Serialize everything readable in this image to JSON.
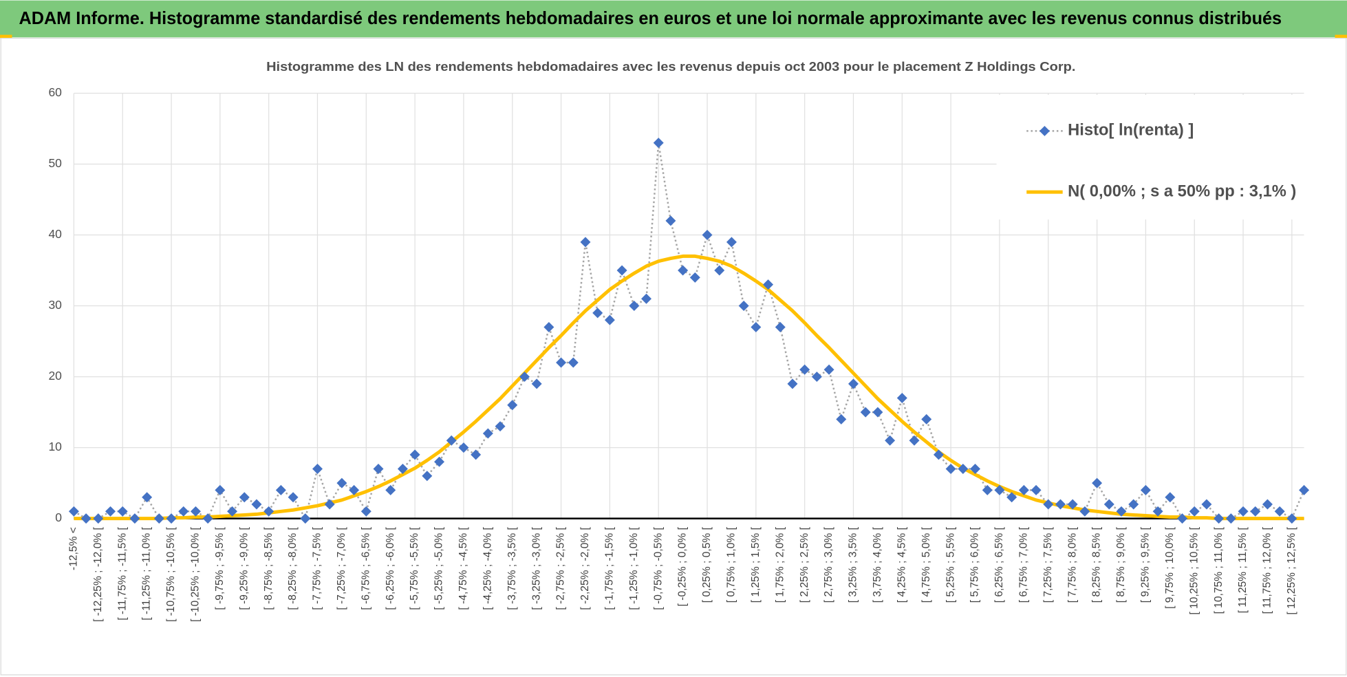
{
  "header": {
    "title": "ADAM Informe. Histogramme standardisé des rendements hebdomadaires en euros et une loi normale approximante avec les revenus connus distribués"
  },
  "chart_data": {
    "type": "line",
    "title": "Histogramme des LN des rendements hebdomadaires avec les revenus depuis oct 2003 pour le placement Z Holdings Corp.",
    "categories": [
      "-12,5% <",
      null,
      "[ -12,25% ; -12,0% [",
      null,
      "[ -11,75% ; -11,5% [",
      null,
      "[ -11,25% ; -11,0% [",
      null,
      "[ -10,75% ; -10,5% [",
      null,
      "[ -10,25% ; -10,0% [",
      null,
      "[ -9,75% ; -9,5% [",
      null,
      "[ -9,25% ; -9,0% [",
      null,
      "[ -8,75% ; -8,5% [",
      null,
      "[ -8,25% ; -8,0% [",
      null,
      "[ -7,75% ; -7,5% [",
      null,
      "[ -7,25% ; -7,0% [",
      null,
      "[ -6,75% ; -6,5% [",
      null,
      "[ -6,25% ; -6,0% [",
      null,
      "[ -5,75% ; -5,5% [",
      null,
      "[ -5,25% ; -5,0% [",
      null,
      "[ -4,75% ; -4,5% [",
      null,
      "[ -4,25% ; -4,0% [",
      null,
      "[ -3,75% ; -3,5% [",
      null,
      "[ -3,25% ; -3,0% [",
      null,
      "[ -2,75% ; -2,5% [",
      null,
      "[ -2,25% ; -2,0% [",
      null,
      "[ -1,75% ; -1,5% [",
      null,
      "[ -1,25% ; -1,0% [",
      null,
      "[ -0,75% ; -0,5% [",
      null,
      "[ -0,25% ; 0,0% [",
      null,
      "[ 0,25% ; 0,5% [",
      null,
      "[ 0,75% ; 1,0% [",
      null,
      "[ 1,25% ; 1,5% [",
      null,
      "[ 1,75% ; 2,0% [",
      null,
      "[ 2,25% ; 2,5% [",
      null,
      "[ 2,75% ; 3,0% [",
      null,
      "[ 3,25% ; 3,5% [",
      null,
      "[ 3,75% ; 4,0% [",
      null,
      "[ 4,25% ; 4,5% [",
      null,
      "[ 4,75% ; 5,0% [",
      null,
      "[ 5,25% ; 5,5% [",
      null,
      "[ 5,75% ; 6,0% [",
      null,
      "[ 6,25% ; 6,5% [",
      null,
      "[ 6,75% ; 7,0% [",
      null,
      "[ 7,25% ; 7,5% [",
      null,
      "[ 7,75% ; 8,0% [",
      null,
      "[ 8,25% ; 8,5% [",
      null,
      "[ 8,75% ; 9,0% [",
      null,
      "[ 9,25% ; 9,5% [",
      null,
      "[ 9,75% ; 10,0% [",
      null,
      "[ 10,25% ; 10,5% [",
      null,
      "[ 10,75% ; 11,0% [",
      null,
      "[ 11,25% ; 11,5% [",
      null,
      "[ 11,75% ; 12,0% [",
      null,
      "[ 12,25% ; 12,5% [",
      null
    ],
    "series": [
      {
        "name": "Histo[ ln(renta) ]",
        "color": "#4472c4",
        "line_color": "#a5a5a5",
        "line_style": "dotted",
        "marker": "diamond",
        "values": [
          1,
          0,
          0,
          1,
          1,
          0,
          3,
          0,
          0,
          1,
          1,
          0,
          4,
          1,
          3,
          2,
          1,
          4,
          3,
          0,
          7,
          2,
          5,
          4,
          1,
          7,
          4,
          7,
          9,
          6,
          8,
          11,
          10,
          9,
          12,
          13,
          16,
          20,
          19,
          27,
          22,
          22,
          39,
          29,
          28,
          35,
          30,
          31,
          53,
          42,
          35,
          34,
          40,
          35,
          39,
          30,
          27,
          33,
          27,
          19,
          21,
          20,
          21,
          14,
          19,
          15,
          15,
          11,
          17,
          11,
          14,
          9,
          7,
          7,
          7,
          4,
          4,
          3,
          4,
          4,
          2,
          2,
          2,
          1,
          5,
          2,
          1,
          2,
          4,
          1,
          3,
          0,
          1,
          2,
          0,
          0,
          1,
          1,
          2,
          1,
          0,
          4
        ]
      },
      {
        "name": "N( 0,00% ; s a 50% pp : 3,1% )",
        "color": "#ffc000",
        "line_style": "solid",
        "marker": "none",
        "values": [
          0.0,
          0.0,
          0.0,
          0.0,
          0.0,
          0.0,
          0.0,
          0.0,
          0.1,
          0.1,
          0.2,
          0.2,
          0.3,
          0.4,
          0.5,
          0.6,
          0.8,
          1.0,
          1.2,
          1.5,
          1.8,
          2.2,
          2.6,
          3.2,
          3.8,
          4.5,
          5.3,
          6.2,
          7.1,
          8.2,
          9.4,
          10.8,
          12.2,
          13.7,
          15.3,
          16.9,
          18.7,
          20.5,
          22.3,
          24.1,
          25.8,
          27.6,
          29.3,
          30.8,
          32.3,
          33.5,
          34.6,
          35.6,
          36.3,
          36.7,
          37.0,
          37.0,
          36.7,
          36.3,
          35.6,
          34.6,
          33.5,
          32.3,
          30.8,
          29.3,
          27.6,
          25.8,
          24.1,
          22.3,
          20.5,
          18.7,
          16.9,
          15.3,
          13.7,
          12.2,
          10.8,
          9.4,
          8.2,
          7.1,
          6.2,
          5.3,
          4.5,
          3.8,
          3.2,
          2.6,
          2.2,
          1.8,
          1.5,
          1.2,
          1.0,
          0.8,
          0.6,
          0.5,
          0.4,
          0.3,
          0.2,
          0.2,
          0.1,
          0.1,
          0.0,
          0.0,
          0.0,
          0.0,
          0.0,
          0.0,
          0.0,
          0.0
        ]
      }
    ],
    "ylim": [
      0,
      60
    ],
    "yticks": [
      0,
      10,
      20,
      30,
      40,
      50,
      60
    ],
    "grid": true,
    "legend": "top-right"
  }
}
